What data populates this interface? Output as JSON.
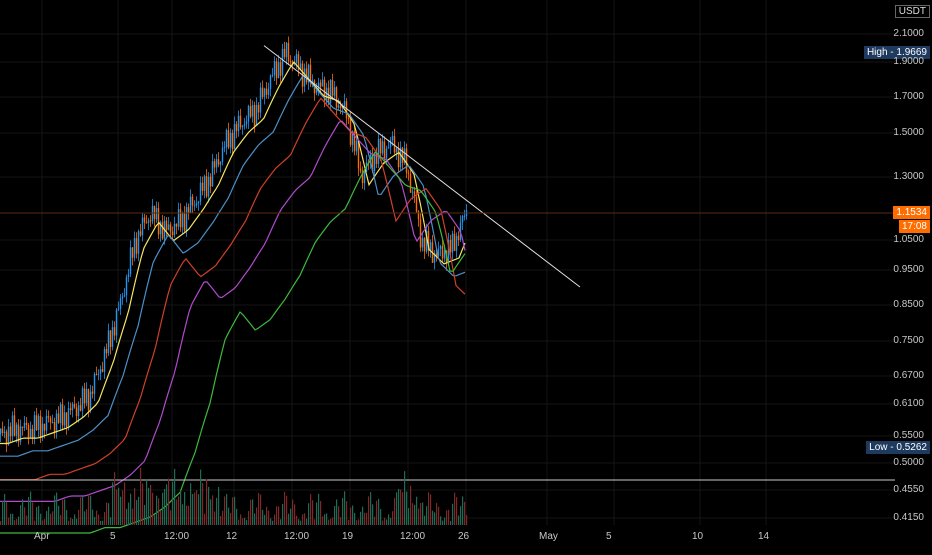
{
  "quote_currency": "USDT",
  "colors": {
    "background": "#000000",
    "bull": "#2196f3",
    "bear": "#ff6d00",
    "ma_yellow": "#f5e663",
    "ma_blue": "#4a90c8",
    "ma_red": "#d0402a",
    "ma_purple": "#b04ccc",
    "ma_green": "#3dbb3d",
    "trendline": "#e0e0e0",
    "high_tag": "#1e3a5f",
    "low_tag": "#1e3a5f",
    "price_tag": "#ff6d00"
  },
  "markers": {
    "high_label": "High - 1.9669",
    "low_label": "Low - 0.5262",
    "current_price": "1.1534",
    "countdown": "17:08"
  },
  "chart_data": {
    "type": "line",
    "title": "",
    "price_axis_ticks": [
      "2.1000",
      "1.9000",
      "1.7000",
      "1.5000",
      "1.3000",
      "1.0500",
      "0.9500",
      "0.8500",
      "0.7500",
      "0.6700",
      "0.6100",
      "0.5500",
      "0.5000",
      "0.4550",
      "0.4150"
    ],
    "time_axis_ticks": [
      "Apr",
      "5",
      "12:00",
      "12",
      "12:00",
      "19",
      "12:00",
      "26",
      "May",
      "5",
      "10",
      "14"
    ],
    "series": [
      {
        "name": "",
        "values": [
          0.55,
          0.56,
          0.56,
          0.57,
          0.58,
          0.6,
          0.63,
          0.72,
          0.85,
          1.05,
          1.15,
          1.08,
          1.12,
          1.2,
          1.3,
          1.45,
          1.55,
          1.62,
          1.8,
          1.96,
          1.85,
          1.75,
          1.72,
          1.6,
          1.3,
          1.4,
          1.45,
          1.35,
          1.05,
          1.0,
          1.02,
          1.15
        ]
      }
    ],
    "trendline": {
      "from_price": 1.9669,
      "to_price": 0.9
    },
    "moving_averages": [
      "yellow",
      "blue",
      "red",
      "purple",
      "green"
    ],
    "log_scale": true,
    "grid": true
  }
}
